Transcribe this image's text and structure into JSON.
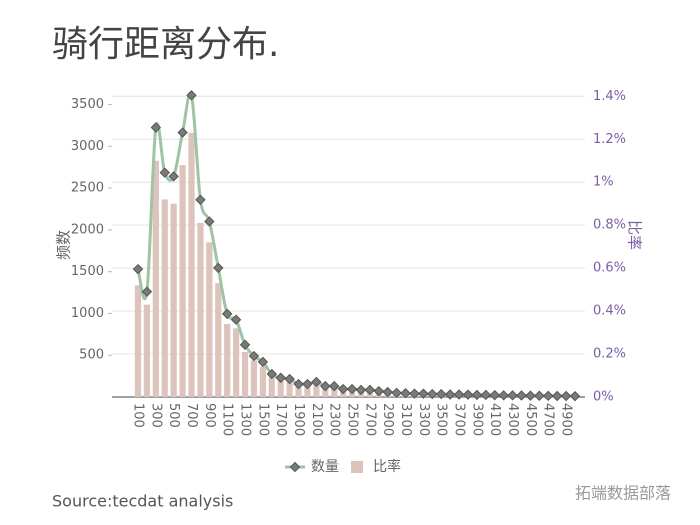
{
  "chart_data": {
    "type": "bar-line",
    "title": "骑行距离分布.",
    "y_label": "频数",
    "y2_label": "比率",
    "source": "Source:tecdat analysis",
    "watermark": "拓端数据部落",
    "categories": [
      "100",
      null,
      "300",
      null,
      "500",
      null,
      "700",
      null,
      "900",
      null,
      "1100",
      null,
      "1300",
      null,
      "1500",
      null,
      "1700",
      null,
      "1900",
      null,
      "2100",
      null,
      "2300",
      null,
      "2500",
      null,
      "2700",
      null,
      "2900",
      null,
      "3100",
      null,
      "3300",
      null,
      "3500",
      null,
      "3700",
      null,
      "3900",
      null,
      "4100",
      null,
      "4300",
      null,
      "4500",
      null,
      "4700",
      null,
      "4900",
      null
    ],
    "series": [
      {
        "name": "数量",
        "type": "line",
        "color": "#9fc4a4",
        "marker_color": "#7a7a7a",
        "values": [
          1530,
          1260,
          3225,
          2685,
          2640,
          3165,
          3610,
          2360,
          2100,
          1545,
          995,
          925,
          625,
          490,
          420,
          275,
          230,
          215,
          155,
          155,
          180,
          130,
          130,
          95,
          95,
          85,
          85,
          70,
          60,
          50,
          45,
          40,
          40,
          35,
          35,
          30,
          30,
          28,
          25,
          25,
          22,
          20,
          20,
          18,
          16,
          15,
          14,
          12,
          12,
          10
        ]
      },
      {
        "name": "比率",
        "type": "bar",
        "axis": "y2",
        "color": "#dcc4bd",
        "values": [
          0.52,
          0.43,
          1.1,
          0.92,
          0.9,
          1.08,
          1.23,
          0.81,
          0.72,
          0.53,
          0.34,
          0.32,
          0.21,
          0.17,
          0.14,
          0.09,
          0.08,
          0.07,
          0.05,
          0.05,
          0.06,
          0.045,
          0.045,
          0.033,
          0.033,
          0.029,
          0.029,
          0.024,
          0.021,
          0.017,
          0.015,
          0.014,
          0.014,
          0.012,
          0.012,
          0.01,
          0.01,
          0.01,
          0.009,
          0.009,
          0.008,
          0.007,
          0.007,
          0.006,
          0.005,
          0.005,
          0.005,
          0.004,
          0.004,
          0.003
        ]
      }
    ],
    "ylim": [
      0,
      3650
    ],
    "yticks": [
      500,
      1000,
      1500,
      2000,
      2500,
      3000,
      3500
    ],
    "y2lim": [
      0,
      1.42
    ],
    "y2ticks": [
      {
        "value": 0,
        "label": "0%"
      },
      {
        "value": 0.2,
        "label": "0.2%"
      },
      {
        "value": 0.4,
        "label": "0.4%"
      },
      {
        "value": 0.6,
        "label": "0.6%"
      },
      {
        "value": 0.8,
        "label": "0.8%"
      },
      {
        "value": 1,
        "label": "1%"
      },
      {
        "value": 1.2,
        "label": "1.2%"
      },
      {
        "value": 1.4,
        "label": "1.4%"
      }
    ],
    "grid": true
  }
}
